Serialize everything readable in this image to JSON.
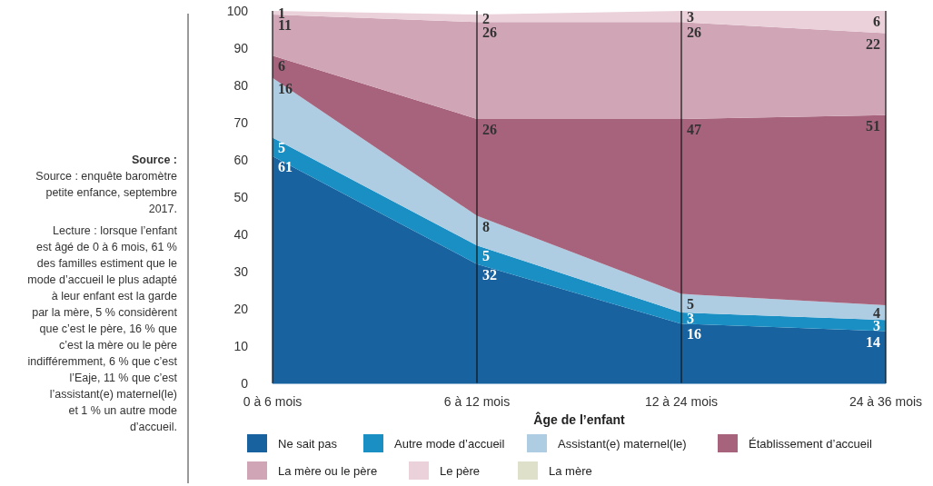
{
  "chart_data": {
    "type": "area",
    "stacked": true,
    "xlabel": "Âge de l’enfant",
    "categories": [
      "0 à 6 mois",
      "6 à 12 mois",
      "12 à 24 mois",
      "24  à 36 mois"
    ],
    "ylim": [
      0,
      100
    ],
    "yticks": [
      0,
      10,
      20,
      30,
      40,
      50,
      60,
      70,
      80,
      90,
      100
    ],
    "grid": "x",
    "legend": "bottom",
    "data_labels": true,
    "series": [
      {
        "name": "Ne sait pas",
        "color": "#1862a0",
        "values": [
          61,
          32,
          16,
          14
        ]
      },
      {
        "name": "Autre mode d’accueil",
        "color": "#1a8fc3",
        "values": [
          5,
          5,
          3,
          3
        ]
      },
      {
        "name": "Assistant(e) maternel(le)",
        "color": "#aecde2",
        "values": [
          16,
          8,
          5,
          4
        ]
      },
      {
        "name": "Établissement d’accueil",
        "color": "#a7627c",
        "values": [
          6,
          26,
          47,
          51
        ]
      },
      {
        "name": "La mère ou le père",
        "color": "#d0a5b6",
        "values": [
          11,
          26,
          26,
          22
        ]
      },
      {
        "name": "Le père",
        "color": "#ebd1da",
        "values": [
          1,
          2,
          3,
          6
        ]
      },
      {
        "name": "La mère",
        "color": "#dfe0c9",
        "values": [
          null,
          null,
          null,
          null
        ]
      }
    ],
    "annotations": [
      "Source :",
      "Source : enquête baromètre petite enfance, septembre 2017.",
      "Lecture : lorsque l’enfant est âgé de 0 à 6 mois, 61 % des familles estiment que le mode d’accueil le plus adapté à leur enfant est la garde par la mère, 5 % considèrent que c’est le père, 16 % que c’est la mère ou le père indifféremment, 6 % que c’est l’Eaje, 11 % que c’est l’assistant(e) maternel(le) et 1 % un autre mode d’accueil."
    ]
  }
}
